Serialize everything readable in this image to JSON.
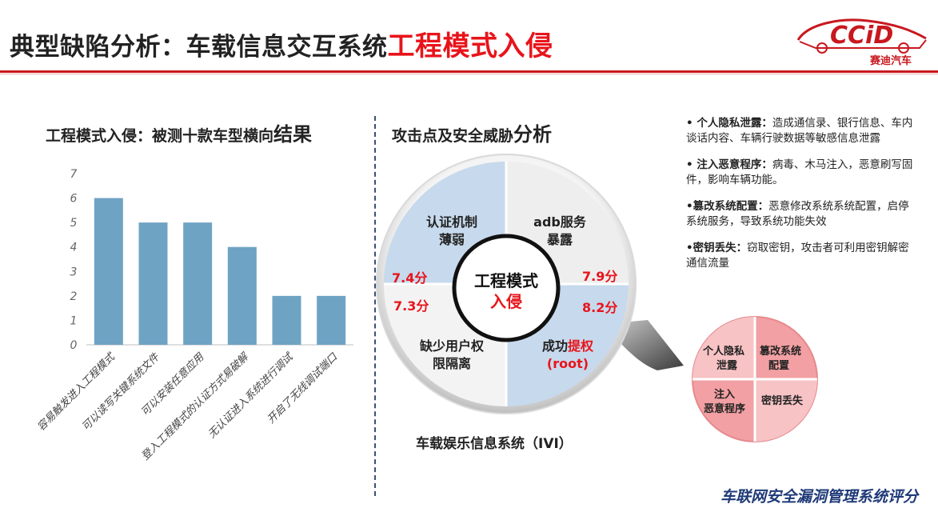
{
  "header": {
    "title_main": "典型缺陷分析：车载信息交互系统",
    "title_highlight": "工程模式入侵",
    "logo_text": "CCiD",
    "logo_subtext": "赛迪汽车"
  },
  "left_panel": {
    "subtitle_main": "工程模式入侵：被测十款车型横向",
    "subtitle_big": "结果"
  },
  "chart_data": {
    "type": "bar",
    "categories": [
      "容易触发进入工程模式",
      "可以读写关键系统文件",
      "可以安装任意应用",
      "登入工程模式的认证方式易破解",
      "无认证进入系统进行调试",
      "开启了无线调试端口"
    ],
    "values": [
      6,
      5,
      5,
      4,
      2,
      2
    ],
    "ylim": [
      0,
      7
    ],
    "yticks": [
      "0",
      "1",
      "2",
      "3",
      "4",
      "5",
      "6",
      "7"
    ],
    "grid": false,
    "bar_color": "#6fa3c4"
  },
  "middle_panel": {
    "subtitle_main": "攻击点及安全威胁",
    "subtitle_big": "分析",
    "center_line1": "工程模式",
    "center_line2": "入侵",
    "q_tl": [
      "认证机制",
      "薄弱"
    ],
    "q_tr": [
      "adb服务",
      "暴露"
    ],
    "q_bl": [
      "缺少用户权",
      "限隔离"
    ],
    "q_br_line1a": "成功",
    "q_br_line1b": "提权",
    "q_br_line2": "(root)",
    "score_tl": "7.4分",
    "score_tr": "7.9分",
    "score_bl": "7.3分",
    "score_br": "8.2分",
    "caption": "车载娱乐信息系统（IVI）"
  },
  "right_panel": {
    "bullets": [
      {
        "head": "• 个人隐私泄露：",
        "text": "造成通信录、银行信息、车内谈话内容、车辆行驶数据等敏感信息泄露"
      },
      {
        "head": "• 注入恶意程序：",
        "text": "病毒、木马注入，恶意刷写固件，影响车辆功能。"
      },
      {
        "head": "•篡改系统配置：",
        "text": "恶意修改系统系统配置，启停系统服务，导致系统功能失效"
      },
      {
        "head": "•密钥丢失：",
        "text": "窃取密钥，攻击者可利用密钥解密通信流量"
      }
    ],
    "circle": {
      "tl": [
        "个人隐私",
        "泄露"
      ],
      "tr": [
        "篡改系统",
        "配置"
      ],
      "bl": [
        "注入",
        "恶意程序"
      ],
      "br": [
        "密钥丢失"
      ]
    },
    "colors": {
      "pink": "#f2a0a3",
      "pink_light": "#f7c3c5",
      "accent_red": "#e8141b"
    }
  },
  "footer": {
    "text": "车联网安全漏洞管理系统评分"
  }
}
